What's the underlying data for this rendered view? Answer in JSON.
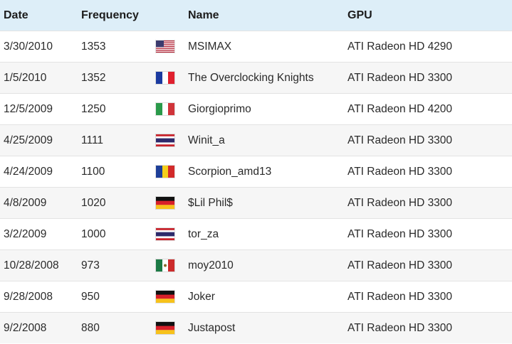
{
  "columns": {
    "date": "Date",
    "frequency": "Frequency",
    "name": "Name",
    "gpu": "GPU"
  },
  "rows": [
    {
      "date": "3/30/2010",
      "frequency": "1353",
      "flag": "us-flag-icon",
      "name": "MSIMAX",
      "gpu": "ATI Radeon HD 4290"
    },
    {
      "date": "1/5/2010",
      "frequency": "1352",
      "flag": "france-flag-icon",
      "name": "The Overclocking Knights",
      "gpu": "ATI Radeon HD 3300"
    },
    {
      "date": "12/5/2009",
      "frequency": "1250",
      "flag": "italy-flag-icon",
      "name": "Giorgioprimo",
      "gpu": "ATI Radeon HD 4200"
    },
    {
      "date": "4/25/2009",
      "frequency": "1111",
      "flag": "thailand-flag-icon",
      "name": "Winit_a",
      "gpu": "ATI Radeon HD 3300"
    },
    {
      "date": "4/24/2009",
      "frequency": "1100",
      "flag": "romania-flag-icon",
      "name": "Scorpion_amd13",
      "gpu": "ATI Radeon HD 3300"
    },
    {
      "date": "4/8/2009",
      "frequency": "1020",
      "flag": "germany-flag-icon",
      "name": "$Lil Phil$",
      "gpu": "ATI Radeon HD 3300"
    },
    {
      "date": "3/2/2009",
      "frequency": "1000",
      "flag": "thailand-flag-icon",
      "name": "tor_za",
      "gpu": "ATI Radeon HD 3300"
    },
    {
      "date": "10/28/2008",
      "frequency": "973",
      "flag": "mexico-flag-icon",
      "name": "moy2010",
      "gpu": "ATI Radeon HD 3300"
    },
    {
      "date": "9/28/2008",
      "frequency": "950",
      "flag": "germany-flag-icon",
      "name": "Joker",
      "gpu": "ATI Radeon HD 3300"
    },
    {
      "date": "9/2/2008",
      "frequency": "880",
      "flag": "germany-flag-icon",
      "name": "Justapost",
      "gpu": "ATI Radeon HD 3300"
    }
  ],
  "colors": {
    "header_bg": "#ddeef8",
    "alt_row_bg": "#f6f6f6",
    "row_border": "#e3e3e3"
  }
}
